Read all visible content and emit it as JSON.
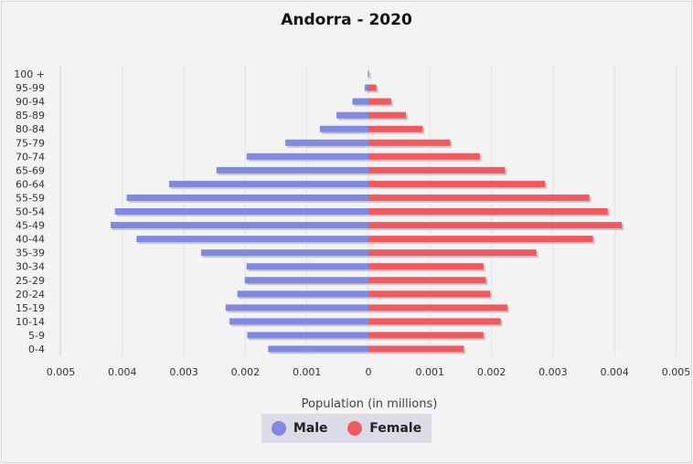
{
  "chart_data": {
    "type": "bar",
    "orientation": "horizontal",
    "title": "Andorra - 2020",
    "xlabel": "Population (in millions)",
    "ylabel": "",
    "xlim": [
      -0.005,
      0.005
    ],
    "x_ticks": [
      "0.005",
      "0.004",
      "0.003",
      "0.002",
      "0.001",
      "0",
      "0.001",
      "0.002",
      "0.003",
      "0.004",
      "0.005"
    ],
    "categories": [
      "0-4",
      "5-9",
      "10-14",
      "15-19",
      "20-24",
      "25-29",
      "30-34",
      "35-39",
      "40-44",
      "45-49",
      "50-54",
      "55-59",
      "60-64",
      "65-69",
      "70-74",
      "75-79",
      "80-84",
      "85-89",
      "90-94",
      "95-99",
      "100 +"
    ],
    "series": [
      {
        "name": "Male",
        "color": "#8088e0",
        "values": [
          0.00163,
          0.00197,
          0.00226,
          0.00232,
          0.00213,
          0.00201,
          0.00198,
          0.00272,
          0.00377,
          0.00419,
          0.00412,
          0.00393,
          0.00324,
          0.00247,
          0.00198,
          0.00135,
          0.00079,
          0.00052,
          0.00026,
          6e-05,
          1e-05
        ]
      },
      {
        "name": "Female",
        "color": "#f05a5e",
        "values": [
          0.00155,
          0.00187,
          0.00215,
          0.00226,
          0.00198,
          0.00191,
          0.00187,
          0.00273,
          0.00365,
          0.00412,
          0.00389,
          0.00359,
          0.00287,
          0.00222,
          0.00181,
          0.00133,
          0.00088,
          0.00061,
          0.00037,
          0.00013,
          1e-05
        ]
      }
    ],
    "grid": true,
    "legend_position": "bottom"
  }
}
